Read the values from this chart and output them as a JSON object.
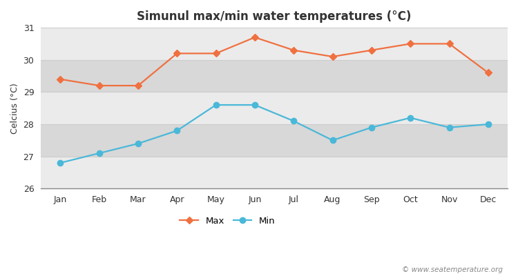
{
  "months": [
    "Jan",
    "Feb",
    "Mar",
    "Apr",
    "May",
    "Jun",
    "Jul",
    "Aug",
    "Sep",
    "Oct",
    "Nov",
    "Dec"
  ],
  "max_temps": [
    29.4,
    29.2,
    29.2,
    30.2,
    30.2,
    30.7,
    30.3,
    30.1,
    30.3,
    30.5,
    30.5,
    29.6
  ],
  "min_temps": [
    26.8,
    27.1,
    27.4,
    27.8,
    28.6,
    28.6,
    28.1,
    27.5,
    27.9,
    28.2,
    27.9,
    28.0
  ],
  "max_color": "#f07040",
  "min_color": "#4ab8d8",
  "title": "Simunul max/min water temperatures (°C)",
  "ylabel": "Celcius (°C)",
  "ylim": [
    26,
    31
  ],
  "yticks": [
    26,
    27,
    28,
    29,
    30,
    31
  ],
  "band_light": "#ebebeb",
  "band_dark": "#d8d8d8",
  "fig_bg": "#ffffff",
  "watermark": "© www.seatemperature.org"
}
